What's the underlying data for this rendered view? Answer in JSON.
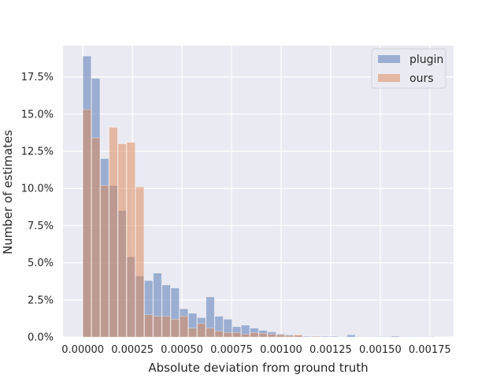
{
  "chart_data": {
    "type": "bar",
    "xlabel": "Absolute deviation from ground truth",
    "ylabel": "Number of estimates",
    "x_ticks": [
      0,
      0.00025,
      0.0005,
      0.00075,
      0.001,
      0.00125,
      0.0015,
      0.00175
    ],
    "x_tick_labels": [
      "0.00000",
      "0.00025",
      "0.00050",
      "0.00075",
      "0.00100",
      "0.00125",
      "0.00150",
      "0.00175"
    ],
    "y_ticks": [
      0,
      2.5,
      5,
      7.5,
      10,
      12.5,
      15,
      17.5
    ],
    "y_tick_labels": [
      "0.0%",
      "2.5%",
      "5.0%",
      "7.5%",
      "10.0%",
      "12.5%",
      "15.0%",
      "17.5%"
    ],
    "xlim": [
      -0.0001,
      0.00187
    ],
    "ylim": [
      0,
      19.6
    ],
    "bin_width": 4.44e-05,
    "bin_start": 0,
    "grid": true,
    "legend_position": "top-right",
    "background": "#EAEAF2",
    "series": [
      {
        "name": "plugin",
        "color": "#4C72B0",
        "values": [
          18.9,
          17.4,
          12.0,
          10.2,
          8.5,
          5.4,
          4.1,
          3.8,
          4.3,
          3.5,
          3.3,
          1.9,
          1.6,
          1.3,
          2.7,
          1.4,
          1.2,
          0.7,
          0.8,
          0.6,
          0.45,
          0.35,
          0.2,
          0.15,
          0.1,
          0.05,
          0.05,
          0.05,
          0.05,
          0.02,
          0.15,
          0.03,
          0.02,
          0.03,
          0.03,
          0.06,
          0.02,
          0.02,
          0.02,
          0.03
        ]
      },
      {
        "name": "ours",
        "color": "#DD8452",
        "values": [
          15.3,
          13.4,
          10.2,
          14.1,
          13.0,
          13.1,
          10.1,
          1.5,
          1.4,
          1.4,
          1.2,
          1.4,
          0.6,
          0.9,
          0.6,
          0.4,
          0.3,
          0.3,
          0.2,
          0.3,
          0.25,
          0.2,
          0.15,
          0.1,
          0.15,
          0.0,
          0.05,
          0.0,
          0.0,
          0.0,
          0.0,
          0.0,
          0.0,
          0.0,
          0.0,
          0.0,
          0.0,
          0.0,
          0.0,
          0.0
        ]
      }
    ]
  }
}
